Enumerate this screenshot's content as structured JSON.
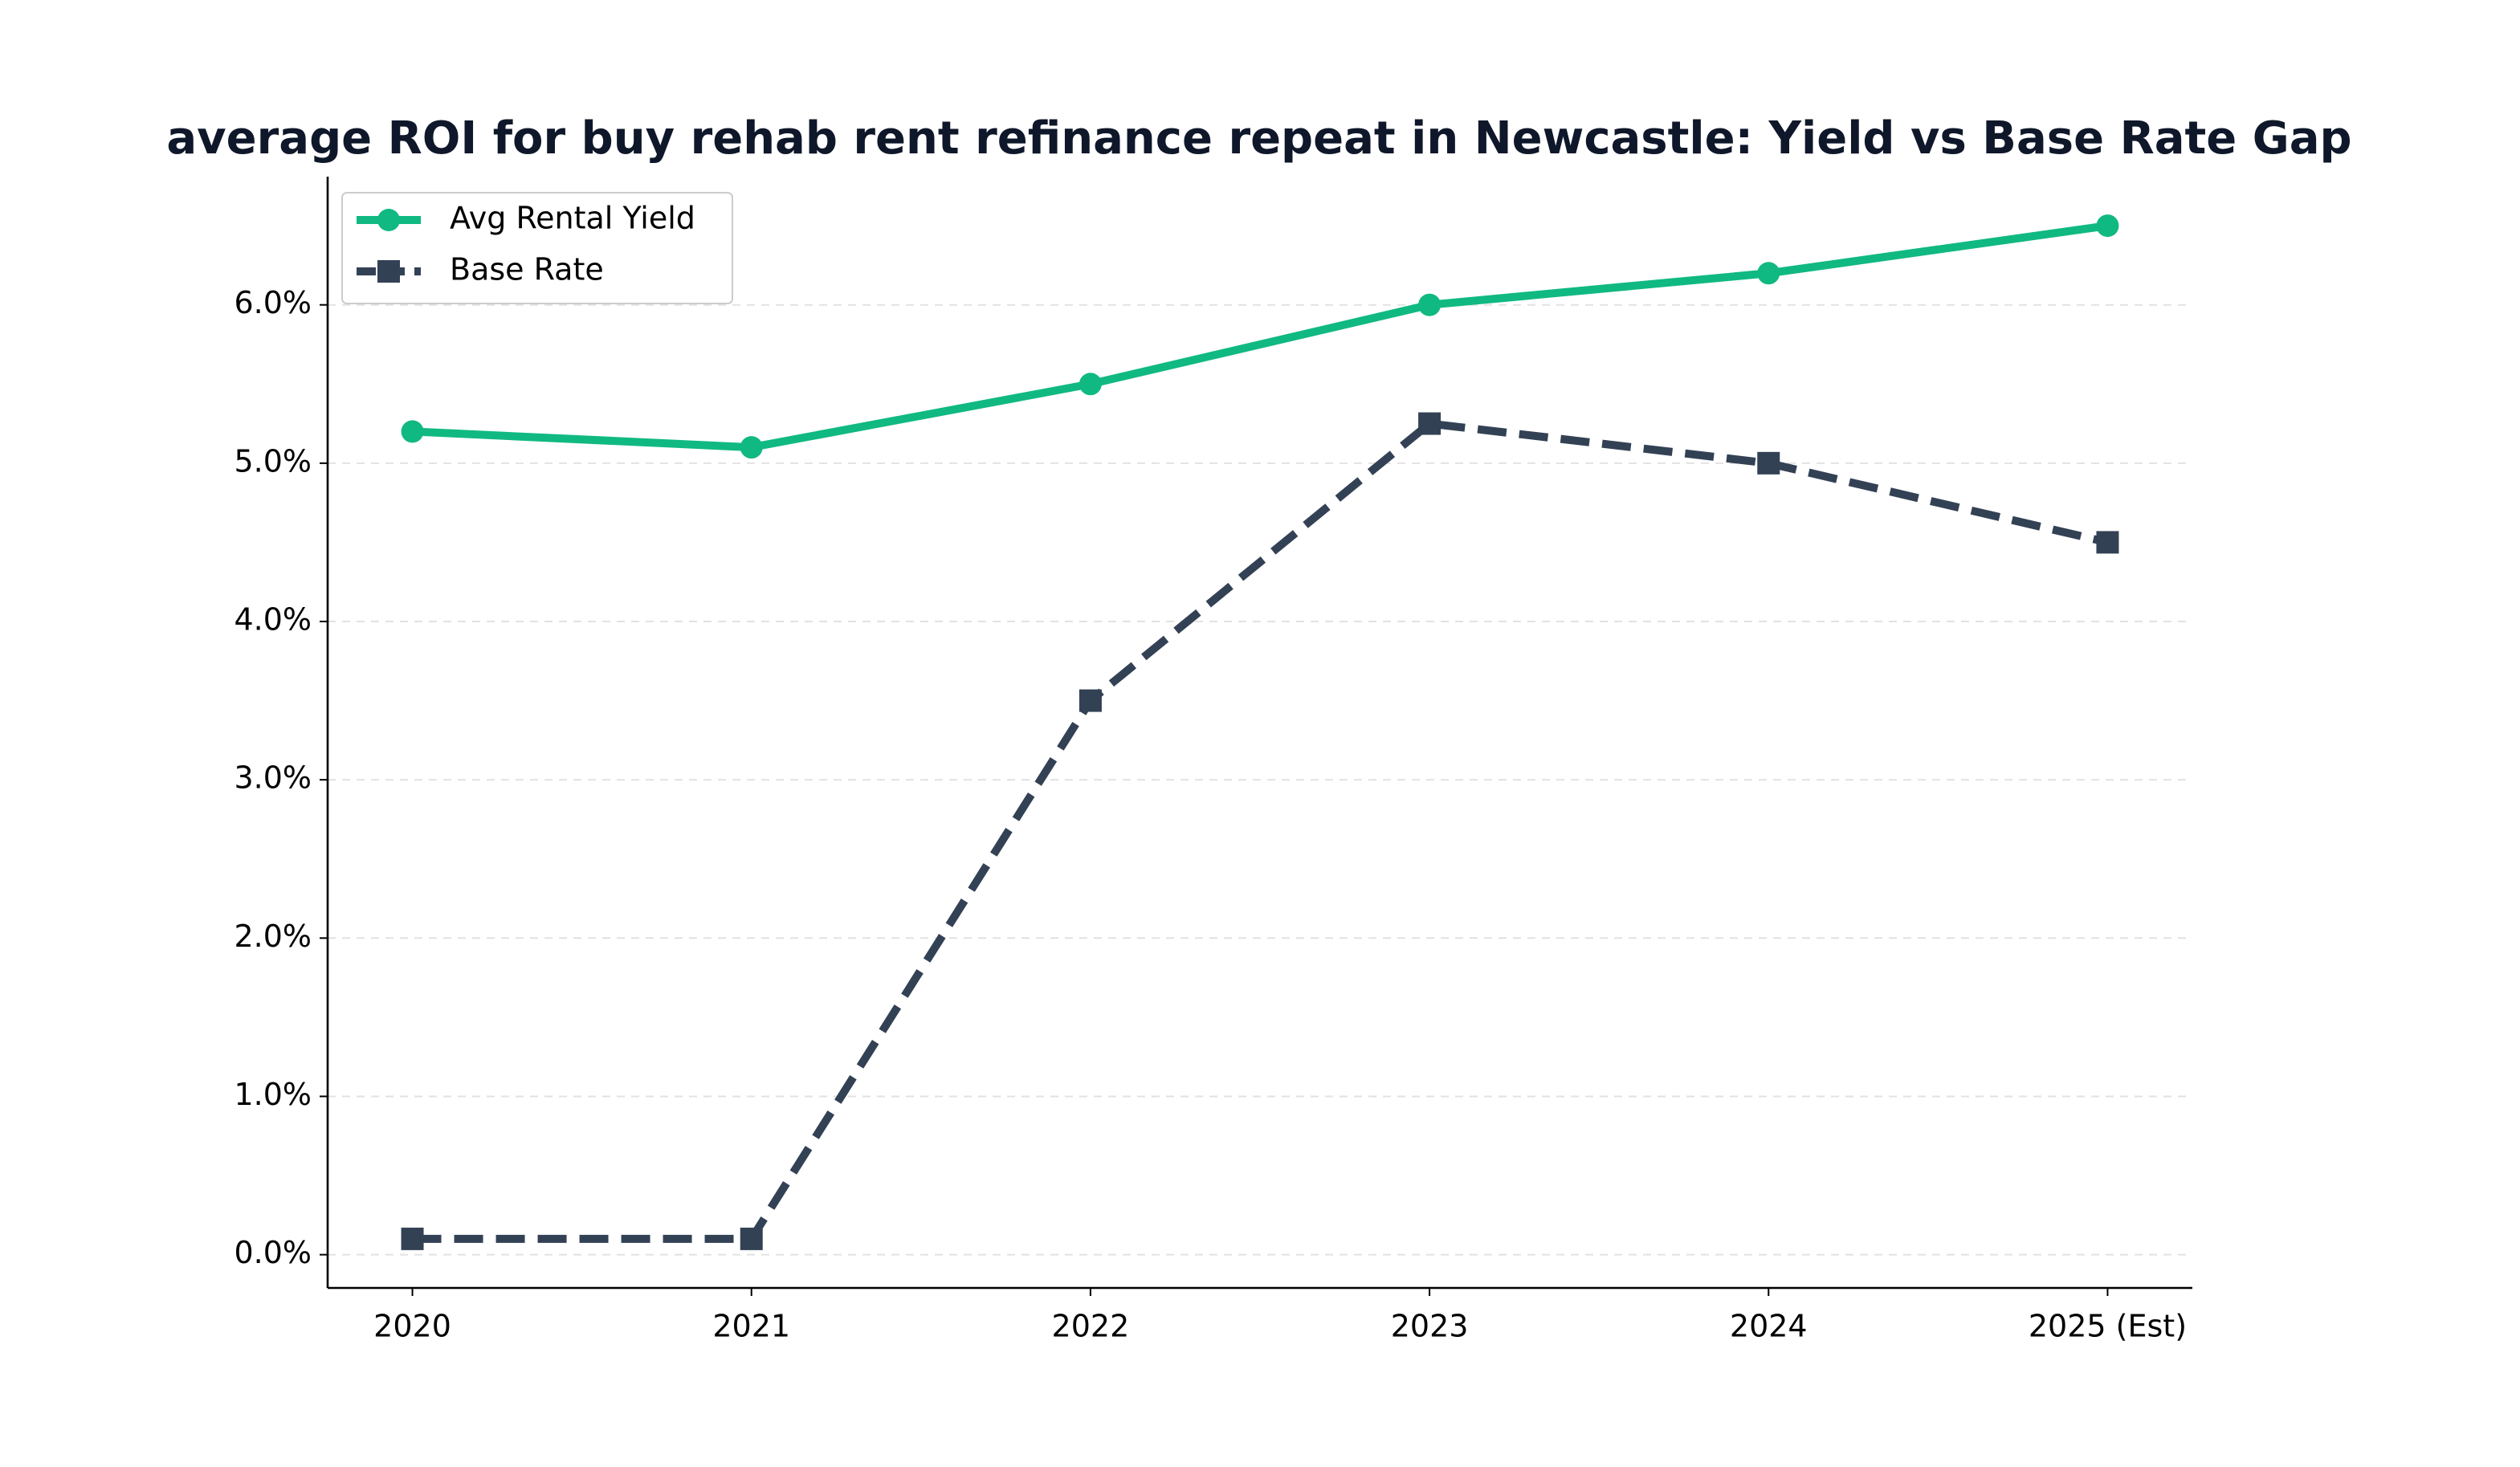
{
  "chart_data": {
    "type": "line",
    "title": "average ROI for buy rehab rent refinance repeat in Newcastle: Yield vs Base Rate Gap",
    "categories": [
      "2020",
      "2021",
      "2022",
      "2023",
      "2024",
      "2025 (Est)"
    ],
    "series": [
      {
        "name": "Avg Rental Yield",
        "color": "#10b981",
        "linestyle": "solid",
        "marker": "circle",
        "values": [
          5.2,
          5.1,
          5.5,
          6.0,
          6.2,
          6.5
        ]
      },
      {
        "name": "Base Rate",
        "color": "#334155",
        "linestyle": "dashed",
        "marker": "square",
        "values": [
          0.1,
          0.1,
          3.5,
          5.25,
          5.0,
          4.5
        ]
      }
    ],
    "ylim": [
      -0.21,
      6.81
    ],
    "yticks": [
      {
        "value": 0,
        "label": "0.0%"
      },
      {
        "value": 1,
        "label": "1.0%"
      },
      {
        "value": 2,
        "label": "2.0%"
      },
      {
        "value": 3,
        "label": "3.0%"
      },
      {
        "value": 4,
        "label": "4.0%"
      },
      {
        "value": 5,
        "label": "5.0%"
      },
      {
        "value": 6,
        "label": "6.0%"
      }
    ],
    "grid": true,
    "legend": "upper left"
  }
}
